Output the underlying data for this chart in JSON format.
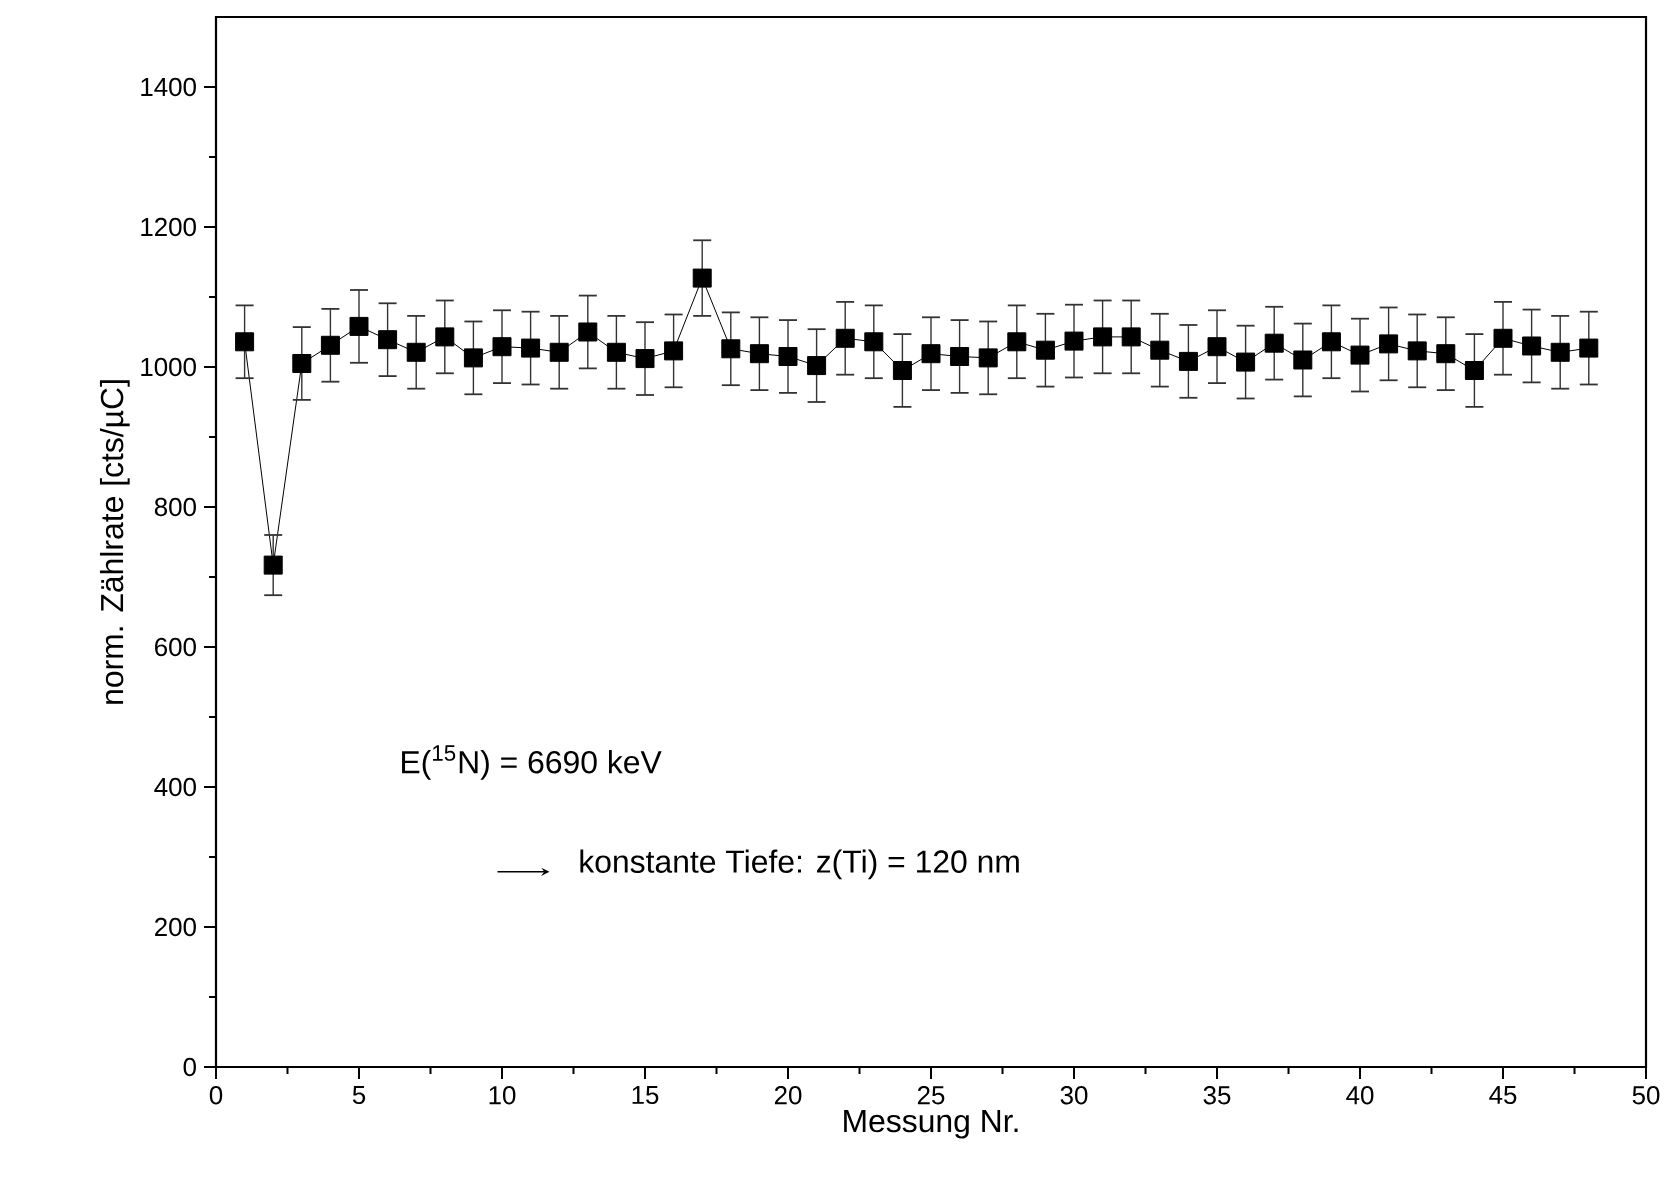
{
  "chart_data": {
    "type": "line",
    "xlabel": "Messung Nr.",
    "ylabel": "norm. Zählrate [cts/µC]",
    "x": [
      1,
      2,
      3,
      4,
      5,
      6,
      7,
      8,
      9,
      10,
      11,
      12,
      13,
      14,
      15,
      16,
      17,
      18,
      19,
      20,
      21,
      22,
      23,
      24,
      25,
      26,
      27,
      28,
      29,
      30,
      31,
      32,
      33,
      34,
      35,
      36,
      37,
      38,
      39,
      40,
      41,
      42,
      43,
      44,
      45,
      46,
      47,
      48
    ],
    "values": [
      1036,
      717,
      1005,
      1031,
      1058,
      1039,
      1021,
      1043,
      1013,
      1029,
      1027,
      1021,
      1050,
      1021,
      1012,
      1023,
      1127,
      1026,
      1019,
      1015,
      1002,
      1041,
      1036,
      995,
      1019,
      1015,
      1013,
      1036,
      1024,
      1037,
      1043,
      1043,
      1024,
      1008,
      1029,
      1007,
      1034,
      1010,
      1036,
      1017,
      1033,
      1023,
      1019,
      995,
      1041,
      1030,
      1021,
      1027
    ],
    "errors": [
      52,
      43,
      52,
      52,
      52,
      52,
      52,
      52,
      52,
      52,
      52,
      52,
      52,
      52,
      52,
      52,
      54,
      52,
      52,
      52,
      52,
      52,
      52,
      52,
      52,
      52,
      52,
      52,
      52,
      52,
      52,
      52,
      52,
      52,
      52,
      52,
      52,
      52,
      52,
      52,
      52,
      52,
      52,
      52,
      52,
      52,
      52,
      52
    ],
    "color": "#000000",
    "marker": "square",
    "line_style": "solid",
    "xlim": [
      0,
      50
    ],
    "ylim": [
      0,
      1500
    ],
    "xticks": [
      0,
      5,
      10,
      15,
      20,
      25,
      30,
      35,
      40,
      45,
      50
    ],
    "yticks": [
      0,
      200,
      400,
      600,
      800,
      1000,
      1200,
      1400
    ],
    "annotations": [
      "E($^{15}$N) = 6690 keV",
      "konstante Tiefe: z(Ti) = 120 nm"
    ]
  }
}
